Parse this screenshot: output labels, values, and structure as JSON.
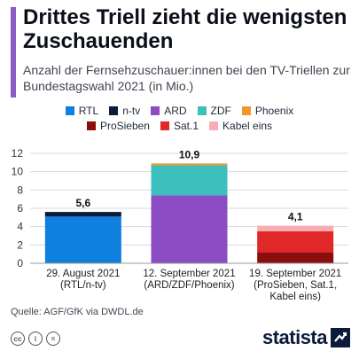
{
  "header": {
    "title": "Drittes Triell zieht die wenigsten Zuschauenden",
    "subtitle": "Anzahl der Fernsehzuschauer:innen bei den TV-Triellen zur Bundestagswahl 2021 (in Mio.)",
    "accent_color": "#8b5cc8"
  },
  "legend": [
    {
      "name": "RTL",
      "color": "#0f7fe0"
    },
    {
      "name": "n-tv",
      "color": "#0b1b3a"
    },
    {
      "name": "ARD",
      "color": "#8b4cc4"
    },
    {
      "name": "ZDF",
      "color": "#3dbfbd"
    },
    {
      "name": "Phoenix",
      "color": "#f0962c"
    },
    {
      "name": "ProSieben",
      "color": "#8b0d0d"
    },
    {
      "name": "Sat.1",
      "color": "#e02828"
    },
    {
      "name": "Kabel eins",
      "color": "#f6aeb4"
    }
  ],
  "chart_data": {
    "type": "bar",
    "stacked": true,
    "categories": [
      [
        "29. August 2021",
        "(RTL/n-tv)"
      ],
      [
        "12. September 2021",
        "(ARD/ZDF/Phoenix)"
      ],
      [
        "19. September 2021",
        "(ProSieben, Sat.1,",
        "Kabel eins)"
      ]
    ],
    "totals": [
      "5,6",
      "10,9",
      "4,1"
    ],
    "series": [
      {
        "name": "RTL",
        "values": [
          5.1,
          0,
          0
        ],
        "color": "#0f7fe0"
      },
      {
        "name": "n-tv",
        "values": [
          0.5,
          0,
          0
        ],
        "color": "#0b1b3a"
      },
      {
        "name": "ARD",
        "values": [
          0,
          7.4,
          0
        ],
        "color": "#8b4cc4"
      },
      {
        "name": "ZDF",
        "values": [
          0,
          3.3,
          0
        ],
        "color": "#3dbfbd"
      },
      {
        "name": "Phoenix",
        "values": [
          0,
          0.2,
          0
        ],
        "color": "#f0962c"
      },
      {
        "name": "ProSieben",
        "values": [
          0,
          0,
          1.2
        ],
        "color": "#8b0d0d"
      },
      {
        "name": "Sat.1",
        "values": [
          0,
          0,
          2.3
        ],
        "color": "#e02828"
      },
      {
        "name": "Kabel eins",
        "values": [
          0,
          0,
          0.6
        ],
        "color": "#f6aeb4"
      }
    ],
    "yticks": [
      "0",
      "2",
      "4",
      "6",
      "8",
      "10",
      "12"
    ],
    "ylim": [
      0,
      12
    ],
    "grid": true
  },
  "footer": {
    "source": "Quelle: AGF/GfK via DWDL.de",
    "license_icons": [
      "cc",
      "i",
      "="
    ],
    "brand": "statista"
  }
}
